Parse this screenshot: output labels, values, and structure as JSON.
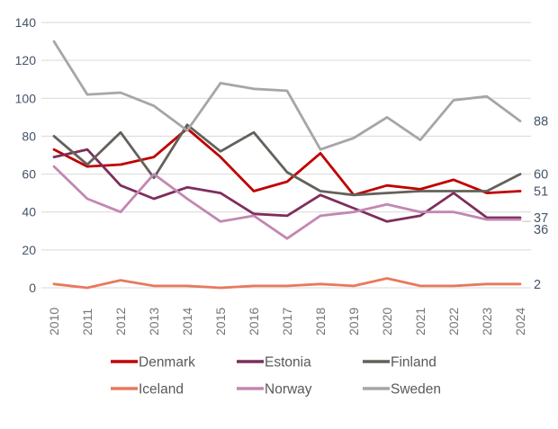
{
  "chart_data": {
    "type": "line",
    "x": [
      "2010",
      "2011",
      "2012",
      "2013",
      "2014",
      "2015",
      "2016",
      "2017",
      "2018",
      "2019",
      "2020",
      "2021",
      "2022",
      "2023",
      "2024"
    ],
    "series": [
      {
        "name": "Denmark",
        "color": "#C00000",
        "end_label": "51",
        "values": [
          73,
          64,
          65,
          69,
          84,
          69,
          51,
          56,
          71,
          49,
          54,
          52,
          57,
          50,
          51
        ]
      },
      {
        "name": "Estonia",
        "color": "#7D2E5C",
        "end_label": "37",
        "values": [
          69,
          73,
          54,
          47,
          53,
          50,
          39,
          38,
          49,
          42,
          35,
          38,
          50,
          37,
          37
        ]
      },
      {
        "name": "Finland",
        "color": "#64615B",
        "end_label": "60",
        "values": [
          80,
          65,
          82,
          58,
          86,
          72,
          82,
          61,
          51,
          49,
          50,
          51,
          51,
          51,
          60
        ]
      },
      {
        "name": "Iceland",
        "color": "#E8795C",
        "end_label": "2",
        "values": [
          2,
          0,
          4,
          1,
          1,
          0,
          1,
          1,
          2,
          1,
          5,
          1,
          1,
          2,
          2
        ]
      },
      {
        "name": "Norway",
        "color": "#C287B2",
        "end_label": "36",
        "values": [
          64,
          47,
          40,
          60,
          47,
          35,
          38,
          26,
          38,
          40,
          44,
          40,
          40,
          36,
          36
        ]
      },
      {
        "name": "Sweden",
        "color": "#A6A6A6",
        "end_label": "88",
        "values": [
          130,
          102,
          103,
          96,
          83,
          108,
          105,
          104,
          73,
          79,
          90,
          78,
          99,
          101,
          88
        ]
      }
    ],
    "title": "",
    "xlabel": "",
    "ylabel": "",
    "ylim": [
      0,
      140
    ],
    "yticks": [
      0,
      20,
      40,
      60,
      80,
      100,
      120,
      140
    ],
    "grid": true,
    "legend_position": "bottom",
    "x_tick_rotation_deg": -90
  },
  "colors": {
    "background": "#FFFFFF",
    "gridline": "#D9D9D9",
    "y_axis_label": "#44546A",
    "end_label": "#44546A",
    "x_axis_label": "#757575",
    "legend_text": "#595959",
    "leader_line": "#BFBFBF"
  }
}
